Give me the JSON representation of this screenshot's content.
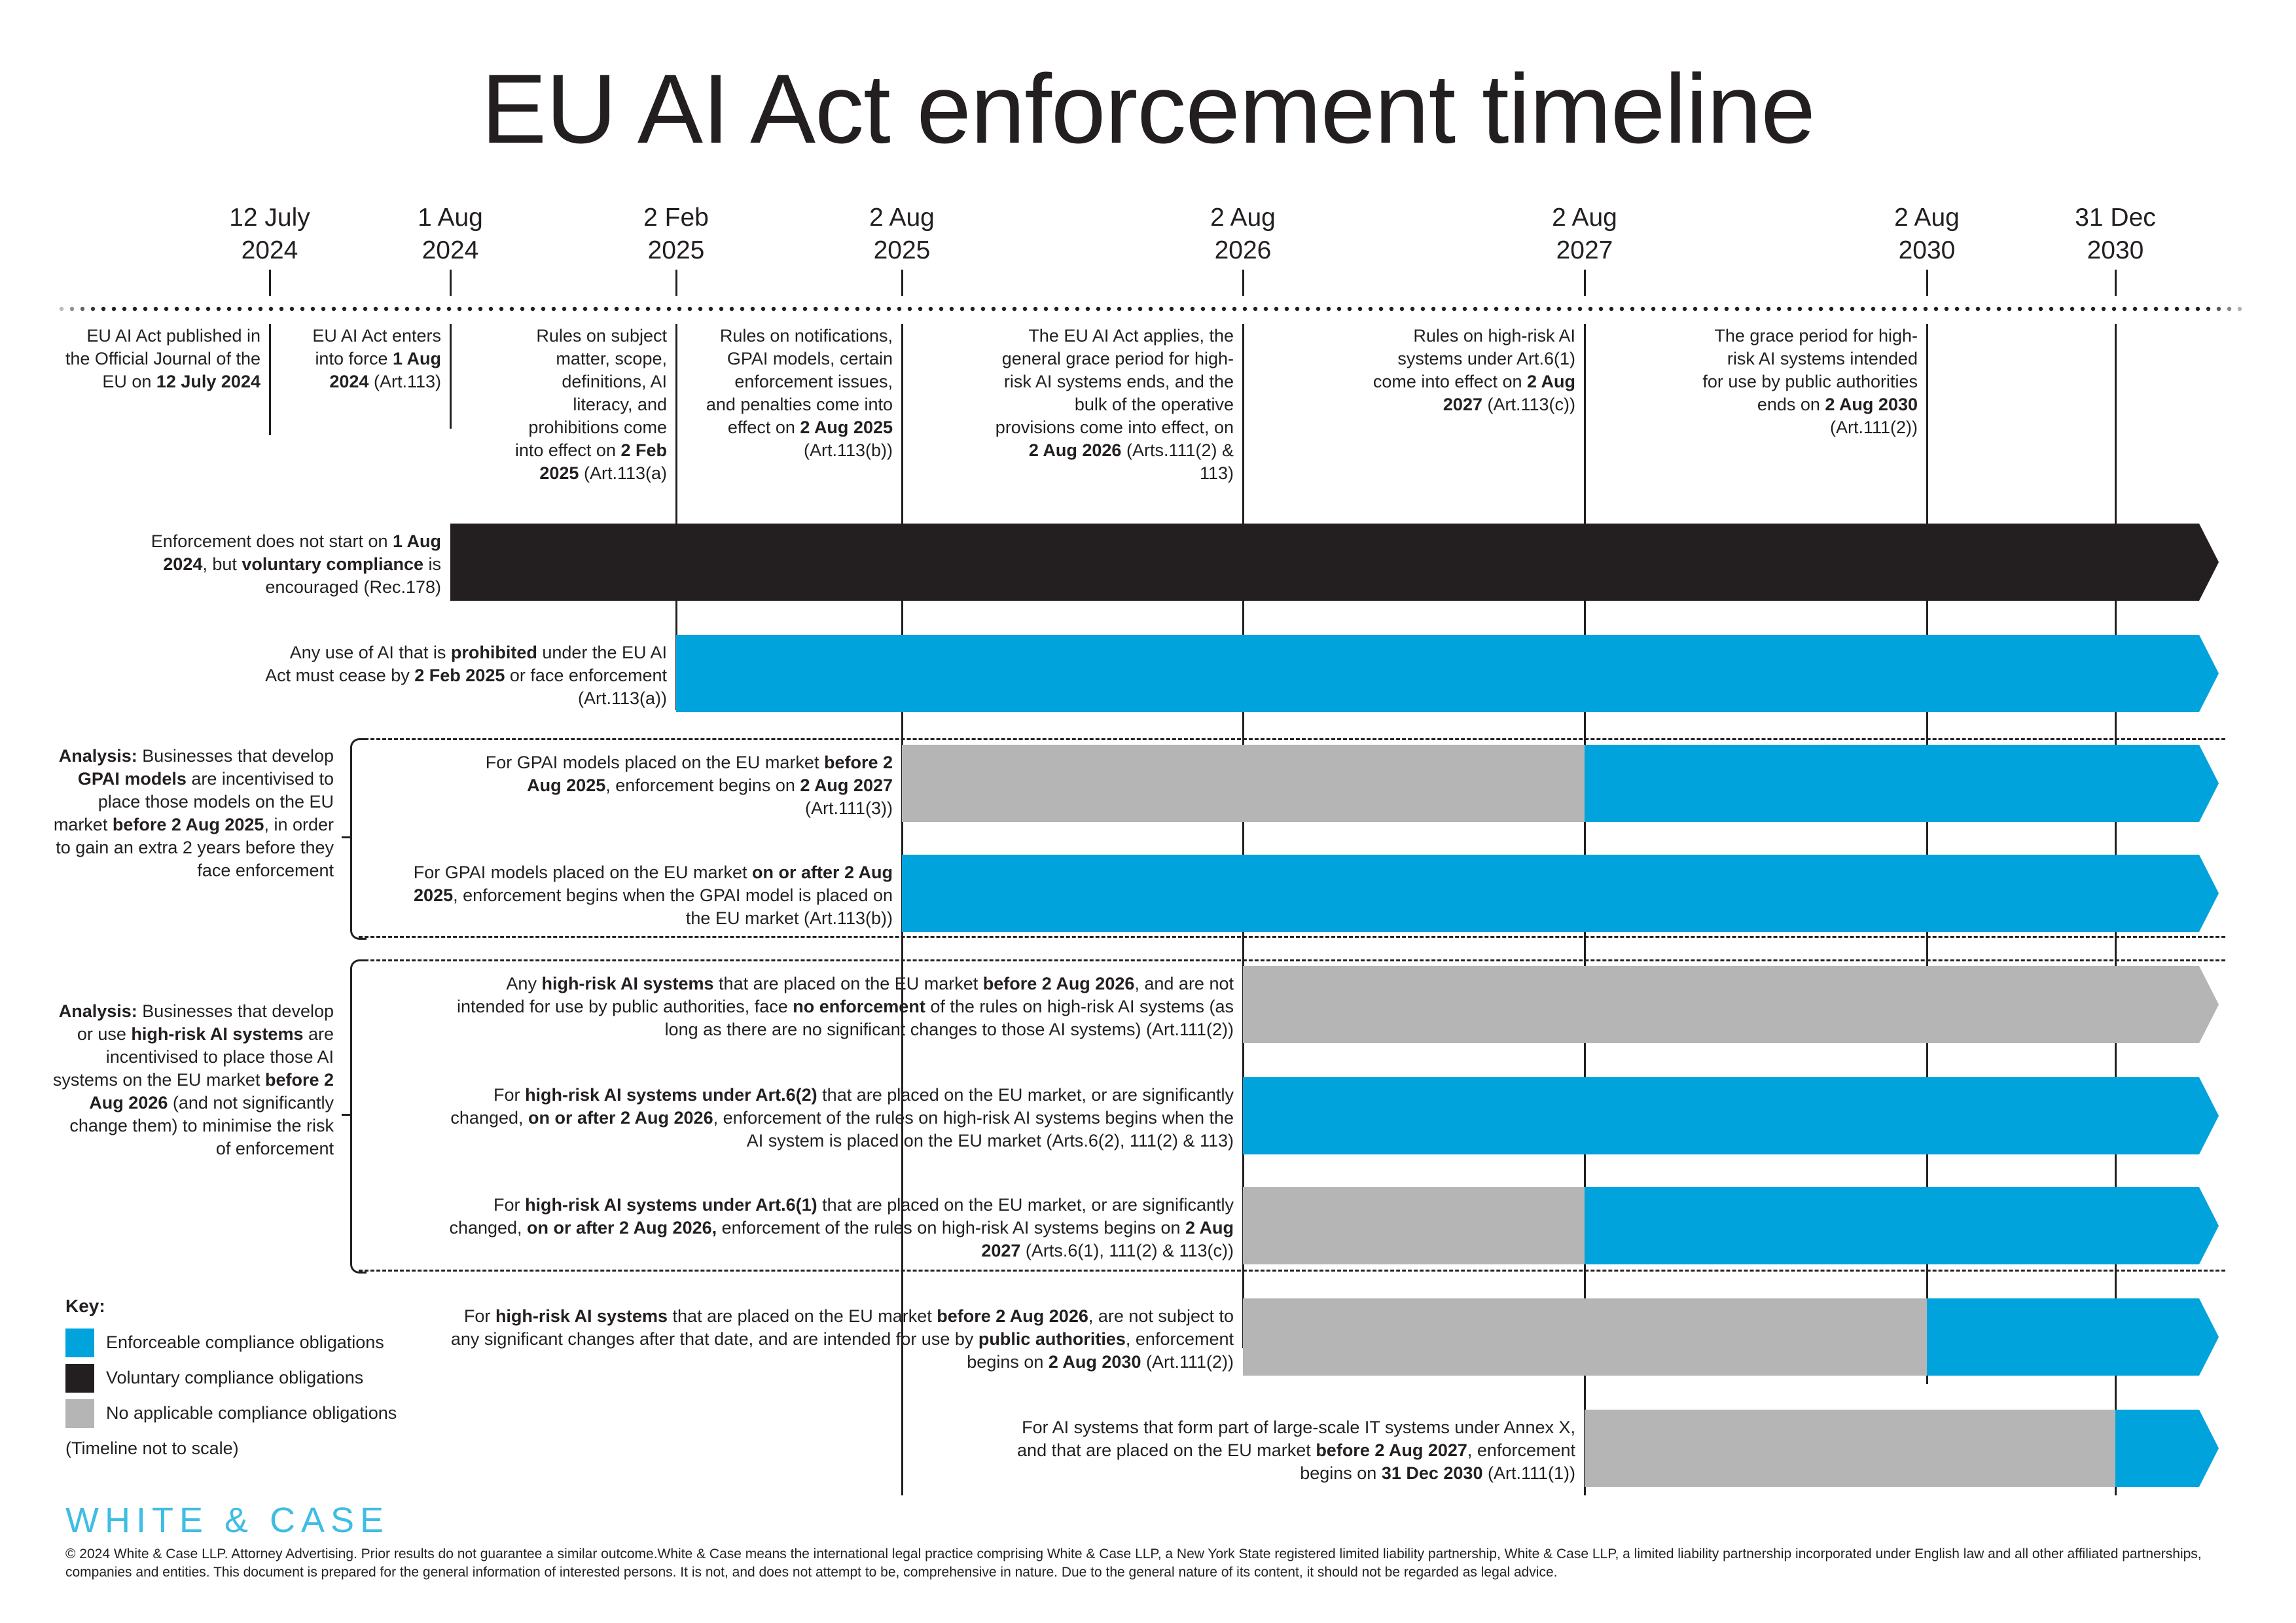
{
  "title": "EU AI Act enforcement timeline",
  "milestones": [
    {
      "line1": "12 July",
      "line2": "2024",
      "desc": [
        [
          "EU AI Act published in the Official Journal of the EU on ",
          false
        ],
        [
          "12 July 2024",
          true
        ]
      ]
    },
    {
      "line1": "1 Aug",
      "line2": "2024",
      "desc": [
        [
          "EU AI Act enters into force ",
          false
        ],
        [
          "1 Aug 2024",
          true
        ],
        [
          " (Art.113)",
          false
        ]
      ]
    },
    {
      "line1": "2 Feb",
      "line2": "2025",
      "desc": [
        [
          "Rules on subject matter, scope, definitions, AI literacy, and prohibitions come into effect on ",
          false
        ],
        [
          "2 Feb 2025",
          true
        ],
        [
          " (Art.113(a)",
          false
        ]
      ]
    },
    {
      "line1": "2 Aug",
      "line2": "2025",
      "desc": [
        [
          "Rules on notifications, GPAI models, certain enforcement issues, and penalties come into effect on ",
          false
        ],
        [
          "2 Aug 2025",
          true
        ],
        [
          " (Art.113(b))",
          false
        ]
      ]
    },
    {
      "line1": "2 Aug",
      "line2": "2026",
      "desc": [
        [
          "The EU AI Act applies, the general grace period for high-risk AI systems ends, and the bulk of the operative provisions come into effect, on ",
          false
        ],
        [
          "2 Aug 2026",
          true
        ],
        [
          " (Arts.111(2) & 113)",
          false
        ]
      ]
    },
    {
      "line1": "2 Aug",
      "line2": "2027",
      "desc": [
        [
          "Rules on high-risk AI systems under Art.6(1) come into effect on ",
          false
        ],
        [
          "2 Aug 2027",
          true
        ],
        [
          " (Art.113(c))",
          false
        ]
      ]
    },
    {
      "line1": "2 Aug",
      "line2": "2030",
      "desc": [
        [
          "The grace period for high-risk AI systems intended for use by public authorities ends on ",
          false
        ],
        [
          "2 Aug 2030",
          true
        ],
        [
          " (Art.111(2))",
          false
        ]
      ]
    },
    {
      "line1": "31 Dec",
      "line2": "2030",
      "desc": []
    }
  ],
  "rows": [
    {
      "segments": [
        {
          "from": 1,
          "type": "voluntary"
        }
      ],
      "text": [
        [
          "Enforcement does not start on ",
          false
        ],
        [
          "1 Aug 2024",
          true
        ],
        [
          ", but ",
          false
        ],
        [
          "voluntary compliance",
          true
        ],
        [
          " is encouraged (Rec.178)",
          false
        ]
      ]
    },
    {
      "segments": [
        {
          "from": 2,
          "type": "enforceable"
        }
      ],
      "text": [
        [
          "Any use of AI that is ",
          false
        ],
        [
          "prohibited",
          true
        ],
        [
          " under the EU AI Act must cease by ",
          false
        ],
        [
          "2 Feb 2025",
          true
        ],
        [
          " or face enforcement (Art.113(a))",
          false
        ]
      ]
    },
    {
      "segments": [
        {
          "from": 3,
          "type": "none"
        },
        {
          "from": 5,
          "type": "enforceable"
        }
      ],
      "text": [
        [
          "For GPAI models placed on the EU market ",
          false
        ],
        [
          "before 2 Aug 2025",
          true
        ],
        [
          ", enforcement begins on ",
          false
        ],
        [
          "2 Aug 2027",
          true
        ],
        [
          " (Art.111(3))",
          false
        ]
      ]
    },
    {
      "segments": [
        {
          "from": 3,
          "type": "enforceable"
        }
      ],
      "text": [
        [
          "For GPAI models placed on the EU market ",
          false
        ],
        [
          "on or after 2 Aug 2025",
          true
        ],
        [
          ", enforcement begins when the GPAI model is placed on the EU market (Art.113(b))",
          false
        ]
      ]
    },
    {
      "segments": [
        {
          "from": 4,
          "type": "none"
        }
      ],
      "text": [
        [
          "Any ",
          false
        ],
        [
          "high-risk AI systems",
          true
        ],
        [
          " that are placed on the EU market ",
          false
        ],
        [
          "before 2 Aug 2026",
          true
        ],
        [
          ", and are not intended for use by public authorities, face ",
          false
        ],
        [
          "no enforcement",
          true
        ],
        [
          " of the rules on high-risk AI systems (as long as there are no significant changes to those AI systems) (Art.111(2))",
          false
        ]
      ]
    },
    {
      "segments": [
        {
          "from": 4,
          "type": "enforceable"
        }
      ],
      "text": [
        [
          "For ",
          false
        ],
        [
          "high-risk AI systems under Art.6(2)",
          true
        ],
        [
          " that are placed on the EU market, or are significantly changed, ",
          false
        ],
        [
          "on or after 2 Aug 2026",
          true
        ],
        [
          ", enforcement of the rules on high-risk AI systems begins when the AI system is placed on the EU market (Arts.6(2), 111(2) & 113)",
          false
        ]
      ]
    },
    {
      "segments": [
        {
          "from": 4,
          "type": "none"
        },
        {
          "from": 5,
          "type": "enforceable"
        }
      ],
      "text": [
        [
          "For ",
          false
        ],
        [
          "high-risk AI systems under Art.6(1)",
          true
        ],
        [
          " that are placed on the EU market, or are significantly changed, ",
          false
        ],
        [
          "on or after 2 Aug 2026,",
          true
        ],
        [
          " enforcement of the rules on high-risk AI systems begins on ",
          false
        ],
        [
          "2 Aug 2027",
          true
        ],
        [
          " (Arts.6(1), 111(2) & 113(c))",
          false
        ]
      ]
    },
    {
      "segments": [
        {
          "from": 4,
          "type": "none"
        },
        {
          "from": 6,
          "type": "enforceable"
        }
      ],
      "text": [
        [
          "For ",
          false
        ],
        [
          "high-risk AI systems",
          true
        ],
        [
          " that are placed on the EU market ",
          false
        ],
        [
          "before 2 Aug 2026",
          true
        ],
        [
          ", are not subject to any significant changes after that date, and are intended for use by ",
          false
        ],
        [
          "public authorities",
          true
        ],
        [
          ", enforcement begins on ",
          false
        ],
        [
          "2 Aug 2030",
          true
        ],
        [
          " (Art.111(2))",
          false
        ]
      ]
    },
    {
      "segments": [
        {
          "from": 5,
          "type": "none"
        },
        {
          "from": 7,
          "type": "enforceable"
        }
      ],
      "text": [
        [
          "For AI systems that form part of large-scale IT systems under Annex X, and that are placed on the EU market ",
          false
        ],
        [
          "before 2 Aug 2027",
          true
        ],
        [
          ", enforcement begins on ",
          false
        ],
        [
          "31 Dec 2030",
          true
        ],
        [
          " (Art.111(1))",
          false
        ]
      ]
    }
  ],
  "analyses": [
    {
      "text": [
        [
          "Analysis:",
          true
        ],
        [
          " Businesses that develop ",
          false
        ],
        [
          "GPAI models",
          true
        ],
        [
          " are incentivised to place those models on the EU market ",
          false
        ],
        [
          "before 2 Aug 2025",
          true
        ],
        [
          ", in order to gain an extra 2 years before they face enforcement",
          false
        ]
      ]
    },
    {
      "text": [
        [
          "Analysis:",
          true
        ],
        [
          " Businesses that develop or use ",
          false
        ],
        [
          "high-risk AI systems",
          true
        ],
        [
          " are incentivised to place those AI systems on the EU market ",
          false
        ],
        [
          "before 2 Aug 2026",
          true
        ],
        [
          " (and not significantly change them) to minimise the risk of enforcement",
          false
        ]
      ]
    }
  ],
  "key": {
    "title": "Key:",
    "items": [
      {
        "label": "Enforceable compliance obligations",
        "color": "#00a3dc"
      },
      {
        "label": "Voluntary compliance obligations",
        "color": "#231f20"
      },
      {
        "label": "No applicable compliance obligations",
        "color": "#b5b5b6"
      }
    ],
    "note": "(Timeline not to scale)"
  },
  "colors": {
    "enforceable": "#00a3dc",
    "voluntary": "#231f20",
    "none": "#b5b5b6",
    "text": "#231f20",
    "logo": "#3fbde3"
  },
  "logo": "WHITE & CASE",
  "footer": "© 2024 White & Case LLP. Attorney Advertising. Prior results do not guarantee a similar outcome.White & Case means the international legal practice comprising White & Case LLP, a New York State registered limited liability partnership, White & Case LLP, a limited liability partnership incorporated under English law and all other affiliated partnerships, companies and entities. This document is prepared for the general information of interested persons. It is not, and does not attempt to be, comprehensive in nature. Due to the general nature of its content, it should not be regarded as legal advice."
}
